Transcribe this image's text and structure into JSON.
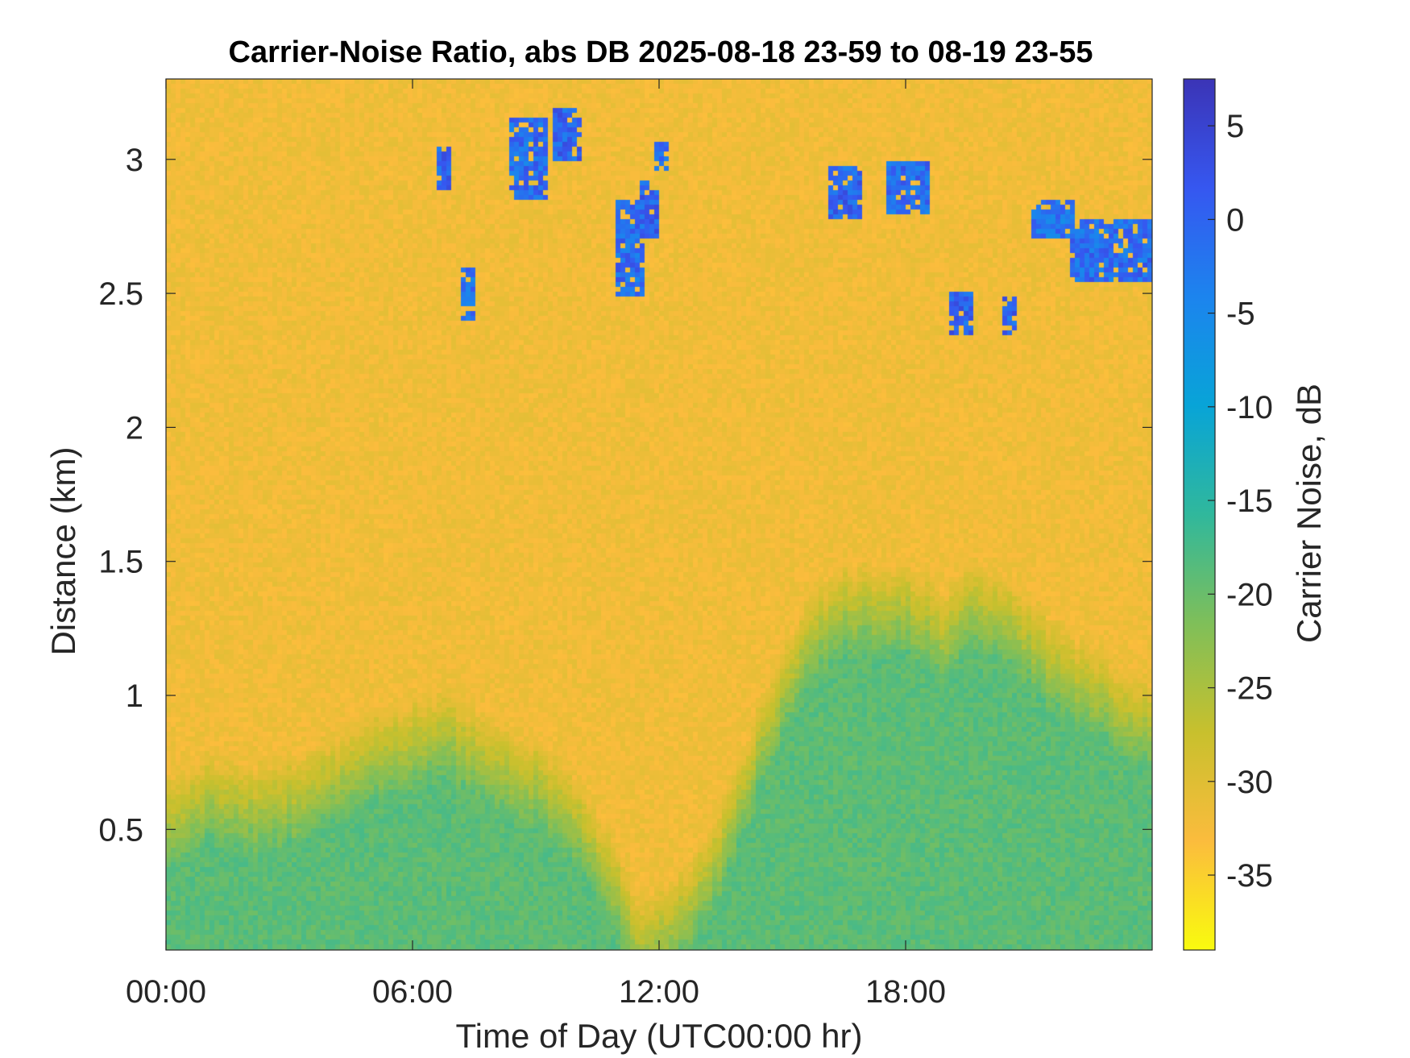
{
  "chart_data": {
    "type": "heatmap",
    "title": "Carrier-Noise Ratio, abs DB 2025-08-18 23-59 to 08-19 23-55",
    "xlabel": "Time of Day (UTC00:00 hr)",
    "ylabel": "Distance (km)",
    "x_unit": "hours",
    "y_unit": "km",
    "xlim": [
      0,
      24
    ],
    "ylim": [
      0.05,
      3.3
    ],
    "x_ticks": [
      0,
      6,
      12,
      18
    ],
    "x_tick_labels": [
      "00:00",
      "06:00",
      "12:00",
      "18:00"
    ],
    "y_ticks": [
      0.5,
      1,
      1.5,
      2,
      2.5,
      3
    ],
    "y_tick_labels": [
      "0.5",
      "1",
      "1.5",
      "2",
      "2.5",
      "3"
    ],
    "colorbar": {
      "label": "Carrier Noise, dB",
      "limits": [
        -39,
        7.5
      ],
      "ticks": [
        5,
        0,
        -5,
        -10,
        -15,
        -20,
        -25,
        -30,
        -35
      ],
      "tick_labels": [
        "5",
        "0",
        "-5",
        "-10",
        "-15",
        "-20",
        "-25",
        "-30",
        "-35"
      ],
      "colormap": "parula (reversed)",
      "colors": [
        "#f9fb0e",
        "#fbbc3d",
        "#c8c02d",
        "#7fbf59",
        "#30b89c",
        "#08a4d7",
        "#1c84ee",
        "#3657f0",
        "#3b34b6"
      ]
    },
    "background_value_db": -32,
    "boundary_layer_top_km": [
      {
        "t": 0.0,
        "km": 0.7
      },
      {
        "t": 1.0,
        "km": 0.8
      },
      {
        "t": 2.0,
        "km": 0.75
      },
      {
        "t": 3.5,
        "km": 0.8
      },
      {
        "t": 4.5,
        "km": 0.9
      },
      {
        "t": 6.0,
        "km": 1.0
      },
      {
        "t": 7.0,
        "km": 1.02
      },
      {
        "t": 8.0,
        "km": 0.9
      },
      {
        "t": 9.0,
        "km": 0.85
      },
      {
        "t": 10.0,
        "km": 0.7
      },
      {
        "t": 11.0,
        "km": 0.45
      },
      {
        "t": 11.5,
        "km": 0.25
      },
      {
        "t": 12.5,
        "km": 0.35
      },
      {
        "t": 13.5,
        "km": 0.6
      },
      {
        "t": 14.5,
        "km": 1.0
      },
      {
        "t": 15.5,
        "km": 1.35
      },
      {
        "t": 16.5,
        "km": 1.5
      },
      {
        "t": 18.0,
        "km": 1.5
      },
      {
        "t": 19.0,
        "km": 1.4
      },
      {
        "t": 19.5,
        "km": 1.52
      },
      {
        "t": 20.5,
        "km": 1.45
      },
      {
        "t": 21.5,
        "km": 1.3
      },
      {
        "t": 23.0,
        "km": 1.15
      },
      {
        "t": 24.0,
        "km": 1.05
      }
    ],
    "boundary_layer_value_db": -19,
    "cloud_returns": [
      {
        "t0": 6.6,
        "t1": 6.9,
        "km0": 2.88,
        "km1": 3.05,
        "db": 4
      },
      {
        "t0": 7.2,
        "t1": 7.5,
        "km0": 2.4,
        "km1": 2.6,
        "db": 2
      },
      {
        "t0": 8.35,
        "t1": 9.3,
        "km0": 2.85,
        "km1": 3.15,
        "db": 3
      },
      {
        "t0": 9.45,
        "t1": 10.1,
        "km0": 3.0,
        "km1": 3.2,
        "db": 4
      },
      {
        "t0": 11.0,
        "t1": 11.7,
        "km0": 2.48,
        "km1": 2.85,
        "db": 3
      },
      {
        "t0": 11.55,
        "t1": 11.95,
        "km0": 2.7,
        "km1": 2.92,
        "db": 4
      },
      {
        "t0": 11.9,
        "t1": 12.25,
        "km0": 2.95,
        "km1": 3.06,
        "db": 3
      },
      {
        "t0": 16.1,
        "t1": 16.9,
        "km0": 2.78,
        "km1": 2.98,
        "db": 4
      },
      {
        "t0": 17.55,
        "t1": 18.6,
        "km0": 2.8,
        "km1": 3.0,
        "db": 3
      },
      {
        "t0": 19.1,
        "t1": 19.7,
        "km0": 2.35,
        "km1": 2.5,
        "db": 4
      },
      {
        "t0": 20.4,
        "t1": 20.7,
        "km0": 2.35,
        "km1": 2.48,
        "db": 4
      },
      {
        "t0": 21.1,
        "t1": 22.1,
        "km0": 2.7,
        "km1": 2.85,
        "db": 2
      },
      {
        "t0": 22.0,
        "t1": 24.0,
        "km0": 2.55,
        "km1": 2.78,
        "db": 3
      }
    ]
  }
}
